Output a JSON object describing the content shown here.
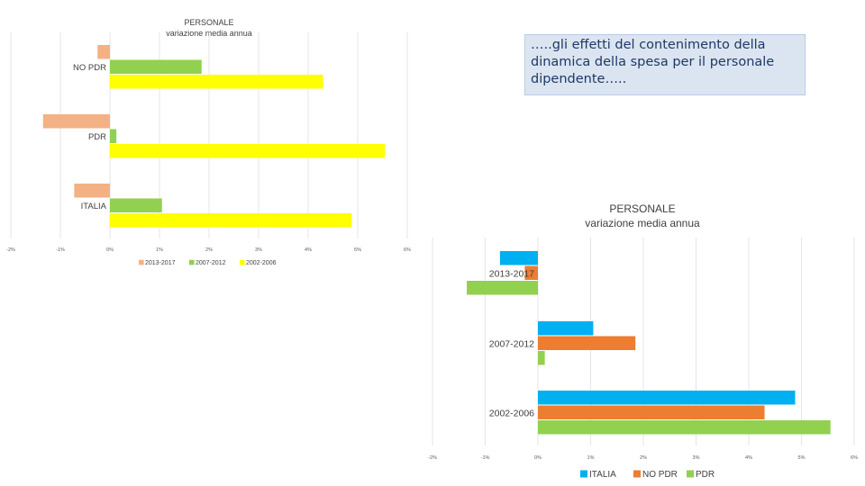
{
  "quote": {
    "text": "…..gli effetti del contenimento della dinamica della spesa per il personale dipendente….."
  },
  "chart_data": [
    {
      "type": "bar",
      "orientation": "horizontal",
      "title": "PERSONALE",
      "subtitle": "variazione media annua",
      "categories": [
        "NO PDR",
        "PDR",
        "ITALIA"
      ],
      "series": [
        {
          "name": "2013-2017",
          "color": "#f4b183",
          "values": [
            -0.25,
            -1.35,
            -0.72
          ]
        },
        {
          "name": "2007-2012",
          "color": "#92d050",
          "values": [
            1.85,
            0.13,
            1.05
          ]
        },
        {
          "name": "2002-2006",
          "color": "#ffff00",
          "values": [
            4.3,
            5.55,
            4.88
          ]
        }
      ],
      "xlim": [
        -2,
        6
      ],
      "x_ticks": [
        "-2%",
        "-1%",
        "0%",
        "1%",
        "2%",
        "3%",
        "4%",
        "5%",
        "6%"
      ],
      "gridlines": true,
      "legend": "bottom"
    },
    {
      "type": "bar",
      "orientation": "horizontal",
      "title": "PERSONALE",
      "subtitle": "variazione media annua",
      "categories": [
        "2013-2017",
        "2007-2012",
        "2002-2006"
      ],
      "series": [
        {
          "name": "ITALIA",
          "color": "#00b0f0",
          "values": [
            -0.72,
            1.05,
            4.88
          ]
        },
        {
          "name": "NO PDR",
          "color": "#ed7d31",
          "values": [
            -0.25,
            1.85,
            4.3
          ]
        },
        {
          "name": "PDR",
          "color": "#92d050",
          "values": [
            -1.35,
            0.13,
            5.55
          ]
        }
      ],
      "xlim": [
        -2,
        6
      ],
      "x_ticks": [
        "-2%",
        "-1%",
        "0%",
        "1%",
        "2%",
        "3%",
        "4%",
        "5%",
        "6%"
      ],
      "gridlines": true,
      "legend": "bottom"
    }
  ]
}
